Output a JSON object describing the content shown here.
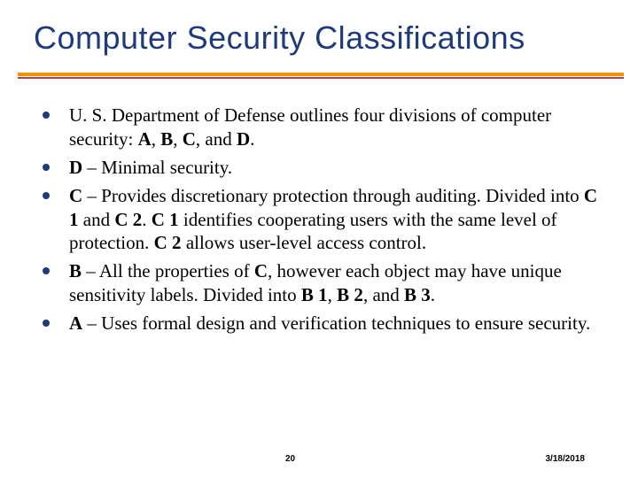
{
  "slide": {
    "title": "Computer Security Classifications",
    "title_color": "#1f3a7a",
    "rule_colors": {
      "top": "#f29400",
      "bottom": "#c04040"
    },
    "bullet_color": "#1f3a7a",
    "background_color": "#ffffff",
    "title_fontsize": 36,
    "body_fontsize": 21,
    "bullets": [
      {
        "html": "U. S. Department of Defense outlines four divisions of computer security: <b>A</b>, <b>B</b>, <b>C</b>, and <b>D</b>."
      },
      {
        "html": "<b>D</b> – Minimal security."
      },
      {
        "html": "<b>C</b> – Provides discretionary protection through auditing. Divided into <b>C 1</b> and <b>C 2</b>. <b>C 1</b> identifies cooperating users with the same level of protection. <b>C 2</b> allows user-level access control."
      },
      {
        "html": "<b>B</b> – All the properties of <b>C</b>, however each object may have unique sensitivity labels. Divided into <b>B 1</b>, <b>B 2</b>, and <b>B 3</b>."
      },
      {
        "html": "<b>A</b> – Uses formal design and verification techniques to ensure security."
      }
    ],
    "footer": {
      "page_number": "20",
      "date": "3/18/2018"
    }
  }
}
